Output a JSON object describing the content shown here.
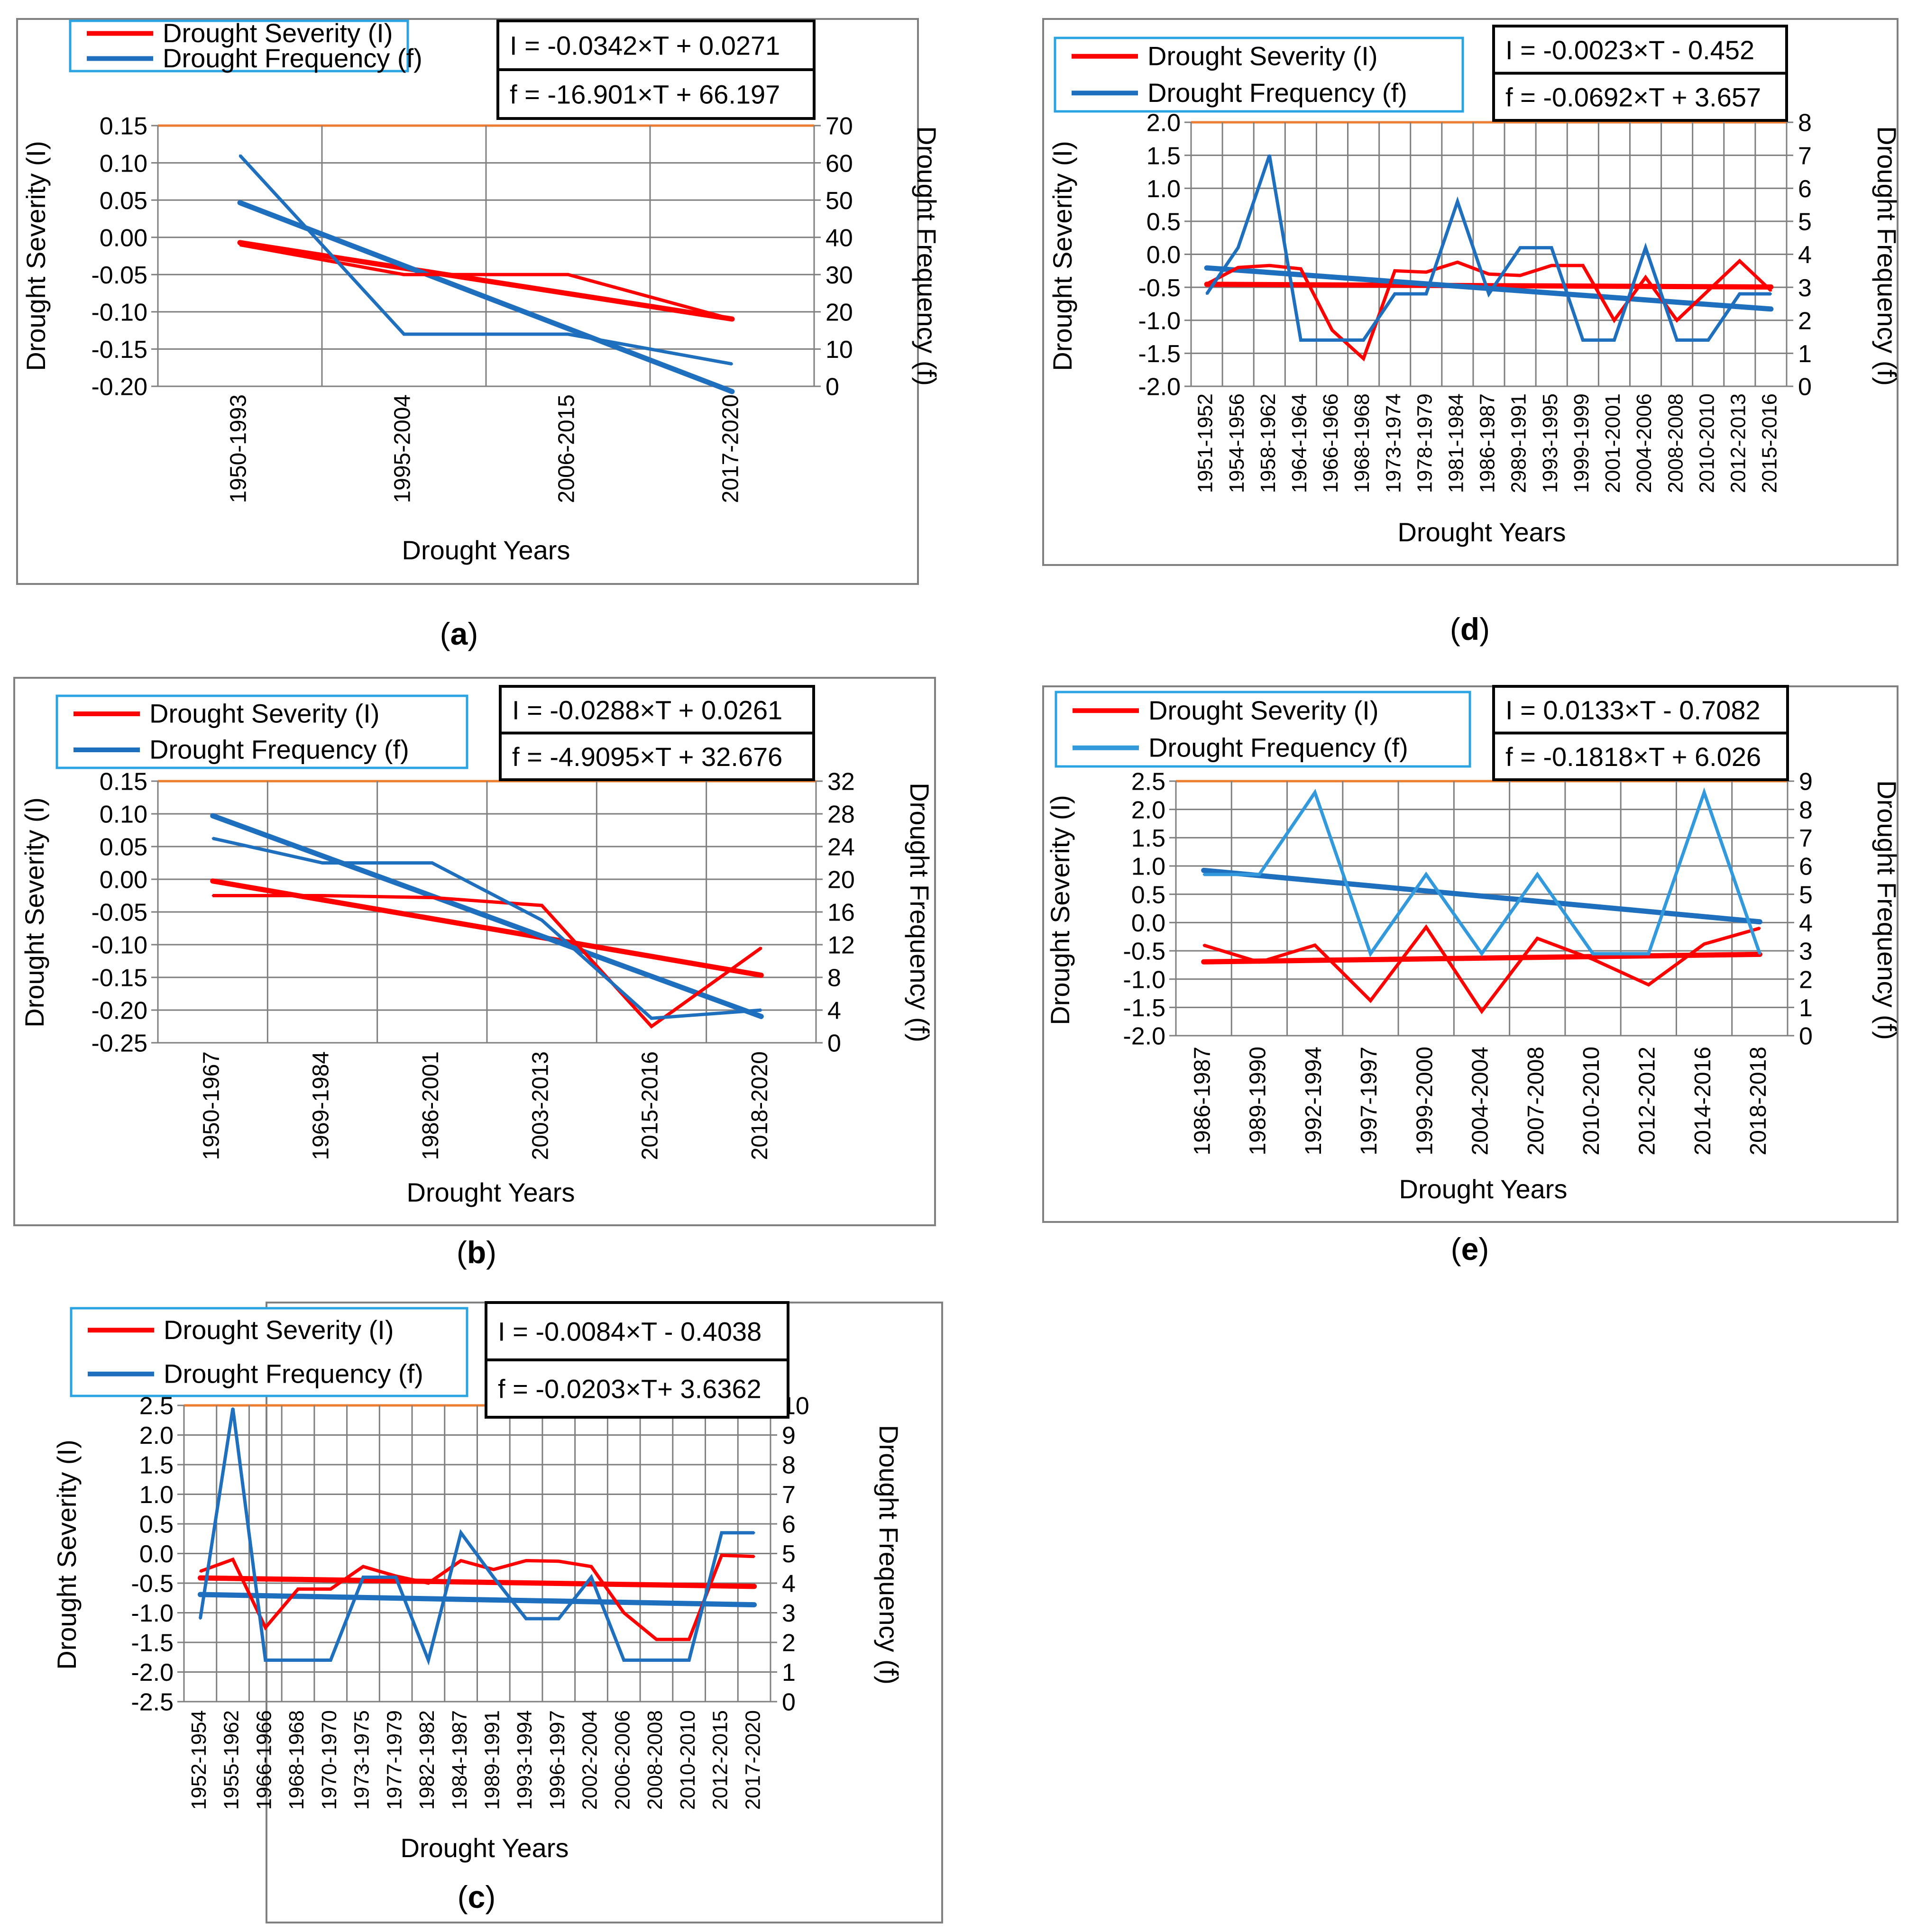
{
  "figure": {
    "panel_letters": [
      "a",
      "b",
      "c",
      "d",
      "e"
    ],
    "colors": {
      "severity": "#ff0000",
      "frequency": "#1f6fbf",
      "frequency_light": "#3399dd",
      "top_line": "#ed7d31",
      "grid": "#7f7f7f",
      "border": "#808080",
      "legend_border": "#29a3e1"
    }
  },
  "chart_data": [
    {
      "panel": "a",
      "type": "line",
      "title": "",
      "xlabel": "Drought Years",
      "ylabel": "Drought Severity (I)",
      "y2label": "Drought Frequency (f)",
      "legend": [
        "Drought  Severity (I)",
        "Drought  Frequency (f)"
      ],
      "equations": [
        "I = -0.0342×T + 0.0271",
        "f = -16.901×T + 66.197"
      ],
      "categories": [
        "1950-1993",
        "1995-2004",
        "2006-2015",
        "2017-2020"
      ],
      "ylim": [
        -0.2,
        0.15
      ],
      "yticks": [
        0.15,
        0.1,
        0.05,
        0.0,
        -0.05,
        -0.1,
        -0.15,
        -0.2
      ],
      "ydec": 2,
      "y2lim": [
        0,
        70
      ],
      "y2ticks": [
        70,
        60,
        50,
        40,
        30,
        20,
        10,
        0
      ],
      "y2dec": 0,
      "series": [
        {
          "name": "Drought Severity (I)",
          "axis": "left",
          "values": [
            -0.01,
            -0.05,
            -0.05,
            -0.11
          ]
        },
        {
          "name": "Drought Frequency (f)",
          "axis": "right",
          "values": [
            62,
            14,
            14,
            6
          ]
        }
      ],
      "trend_severity": {
        "slope": -0.0342,
        "intercept": 0.0271
      },
      "trend_frequency": {
        "slope": -16.901,
        "intercept": 66.197
      },
      "freq_color": "frequency"
    },
    {
      "panel": "b",
      "type": "line",
      "title": "",
      "xlabel": "Drought Years",
      "ylabel": "Drought Severity (I)",
      "y2label": "Drought Frequency (f)",
      "legend": [
        "Drought  Severity (I)",
        "Drought  Frequency (f)"
      ],
      "equations": [
        "I = -0.0288×T + 0.0261",
        "f = -4.9095×T + 32.676"
      ],
      "categories": [
        "1950-1967",
        "1969-1984",
        "1986-2001",
        "2003-2013",
        "2015-2016",
        "2018-2020"
      ],
      "ylim": [
        -0.25,
        0.15
      ],
      "yticks": [
        0.15,
        0.1,
        0.05,
        0.0,
        -0.05,
        -0.1,
        -0.15,
        -0.2,
        -0.25
      ],
      "ydec": 2,
      "y2lim": [
        0,
        32
      ],
      "y2ticks": [
        32,
        28,
        24,
        20,
        16,
        12,
        8,
        4,
        0
      ],
      "y2dec": 0,
      "series": [
        {
          "name": "Drought Severity (I)",
          "axis": "left",
          "values": [
            -0.025,
            -0.025,
            -0.028,
            -0.04,
            -0.225,
            -0.105
          ]
        },
        {
          "name": "Drought Frequency (f)",
          "axis": "right",
          "values": [
            25,
            22,
            22,
            15,
            3,
            4
          ]
        }
      ],
      "trend_severity": {
        "slope": -0.0288,
        "intercept": 0.0261
      },
      "trend_frequency": {
        "slope": -4.9095,
        "intercept": 32.676
      },
      "freq_color": "frequency"
    },
    {
      "panel": "c",
      "type": "line",
      "title": "",
      "xlabel": "Drought Years",
      "ylabel": "Drought Severity (I)",
      "y2label": "Drought Frequency (f)",
      "legend": [
        "Drought  Severity (I)",
        "Drought  Frequency (f)"
      ],
      "equations": [
        "I = -0.0084×T - 0.4038",
        "f = -0.0203×T+ 3.6362"
      ],
      "categories": [
        "1952-1954",
        "1955-1962",
        "1966-1966",
        "1968-1968",
        "1970-1970",
        "1973-1975",
        "1977-1979",
        "1982-1982",
        "1984-1987",
        "1989-1991",
        "1993-1994",
        "1996-1997",
        "2002-2004",
        "2006-2006",
        "2008-2008",
        "2010-2010",
        "2012-2015",
        "2017-2020"
      ],
      "ylim": [
        -2.5,
        2.5
      ],
      "yticks": [
        2.5,
        2.0,
        1.5,
        1.0,
        0.5,
        0.0,
        -0.5,
        -1.0,
        -1.5,
        -2.0,
        -2.5
      ],
      "ydec": 1,
      "y2lim": [
        0,
        10
      ],
      "y2ticks": [
        10,
        9,
        8,
        7,
        6,
        5,
        4,
        3,
        2,
        1,
        0
      ],
      "y2dec": 0,
      "series": [
        {
          "name": "Drought Severity (I)",
          "axis": "left",
          "values": [
            -0.3,
            -0.1,
            -1.25,
            -0.6,
            -0.6,
            -0.22,
            -0.38,
            -0.5,
            -0.12,
            -0.27,
            -0.12,
            -0.13,
            -0.22,
            -1.0,
            -1.45,
            -1.45,
            -0.03,
            -0.05
          ]
        },
        {
          "name": "Drought Frequency (f)",
          "axis": "right",
          "values": [
            2.8,
            9.9,
            1.4,
            1.4,
            1.4,
            4.2,
            4.2,
            1.4,
            5.7,
            4.2,
            2.8,
            2.8,
            4.2,
            1.4,
            1.4,
            1.4,
            5.7,
            5.7
          ]
        }
      ],
      "trend_severity": {
        "slope": -0.0084,
        "intercept": -0.4038
      },
      "trend_frequency": {
        "slope": -0.0203,
        "intercept": 3.6362
      },
      "freq_color": "frequency"
    },
    {
      "panel": "d",
      "type": "line",
      "title": "",
      "xlabel": "Drought Years",
      "ylabel": "Drought Severity (I)",
      "y2label": "Drought Frequency (f)",
      "legend": [
        "Drought  Severity (I)",
        "Drought  Frequency (f)"
      ],
      "equations": [
        "I = -0.0023×T - 0.452",
        "f = -0.0692×T + 3.657"
      ],
      "categories": [
        "1951-1952",
        "1954-1956",
        "1958-1962",
        "1964-1964",
        "1966-1966",
        "1968-1968",
        "1973-1974",
        "1978-1979",
        "1981-1984",
        "1986-1987",
        "2989-1991",
        "1993-1995",
        "1999-1999",
        "2001-2001",
        "2004-2006",
        "2008-2008",
        "2010-2010",
        "2012-2013",
        "2015-2016"
      ],
      "ylim": [
        -2.0,
        2.0
      ],
      "yticks": [
        2.0,
        1.5,
        1.0,
        0.5,
        0.0,
        -0.5,
        -1.0,
        -1.5,
        -2.0
      ],
      "ydec": 1,
      "y2lim": [
        0,
        8
      ],
      "y2ticks": [
        8,
        7,
        6,
        5,
        4,
        3,
        2,
        1,
        0
      ],
      "y2dec": 0,
      "series": [
        {
          "name": "Drought Severity (I)",
          "axis": "left",
          "values": [
            -0.45,
            -0.2,
            -0.17,
            -0.22,
            -1.15,
            -1.58,
            -0.25,
            -0.27,
            -0.12,
            -0.3,
            -0.32,
            -0.17,
            -0.17,
            -1.0,
            -0.35,
            -1.0,
            -0.55,
            -0.1,
            -0.55
          ]
        },
        {
          "name": "Drought Frequency (f)",
          "axis": "right",
          "values": [
            2.8,
            4.2,
            7.0,
            1.4,
            1.4,
            1.4,
            2.8,
            2.8,
            5.6,
            2.8,
            4.2,
            4.2,
            1.4,
            1.4,
            4.2,
            1.4,
            1.4,
            2.8,
            2.8
          ]
        }
      ],
      "trend_severity": {
        "slope": -0.0023,
        "intercept": -0.452
      },
      "trend_frequency": {
        "slope": -0.0692,
        "intercept": 3.657
      },
      "freq_color": "frequency"
    },
    {
      "panel": "e",
      "type": "line",
      "title": "",
      "xlabel": "Drought Years",
      "ylabel": "Drought Severity (I)",
      "y2label": "Drought Frequency (f)",
      "legend": [
        "Drought  Severity (I)",
        "Drought  Frequency (f)"
      ],
      "equations": [
        "I = 0.0133×T - 0.7082",
        "f = -0.1818×T + 6.026"
      ],
      "categories": [
        "1986-1987",
        "1989-1990",
        "1992-1994",
        "1997-1997",
        "1999-2000",
        "2004-2004",
        "2007-2008",
        "2010-2010",
        "2012-2012",
        "2014-2016",
        "2018-2018"
      ],
      "ylim": [
        -2.0,
        2.5
      ],
      "yticks": [
        2.5,
        2.0,
        1.5,
        1.0,
        0.5,
        0.0,
        -0.5,
        -1.0,
        -1.5,
        -2.0
      ],
      "ydec": 1,
      "y2lim": [
        0,
        9
      ],
      "y2ticks": [
        9,
        8,
        7,
        6,
        5,
        4,
        3,
        2,
        1,
        0
      ],
      "y2dec": 0,
      "series": [
        {
          "name": "Drought Severity (I)",
          "axis": "left",
          "values": [
            -0.4,
            -0.7,
            -0.4,
            -1.38,
            -0.08,
            -1.57,
            -0.28,
            -0.65,
            -1.1,
            -0.38,
            -0.1
          ]
        },
        {
          "name": "Drought Frequency (f)",
          "axis": "right",
          "values": [
            5.7,
            5.7,
            8.6,
            2.9,
            5.7,
            2.9,
            5.7,
            2.9,
            2.9,
            8.6,
            2.9
          ]
        }
      ],
      "trend_severity": {
        "slope": 0.0133,
        "intercept": -0.7082
      },
      "trend_frequency": {
        "slope": -0.1818,
        "intercept": 6.026
      },
      "freq_color": "frequency_light"
    }
  ]
}
